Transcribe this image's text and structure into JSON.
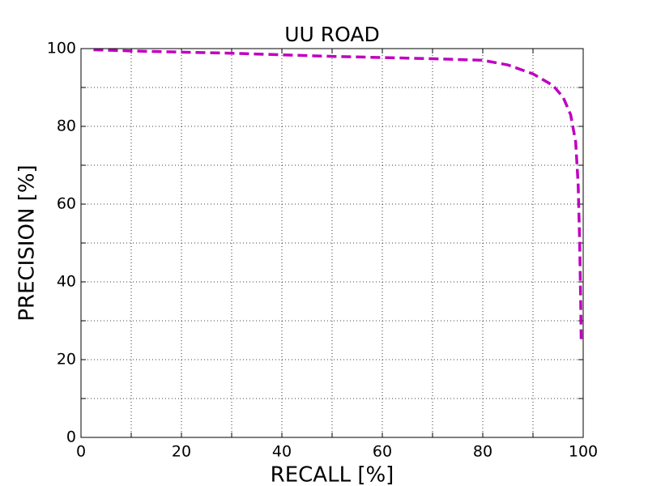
{
  "chart_data": {
    "type": "line",
    "title": "UU ROAD",
    "x_label": "RECALL [%]",
    "y_label": "PRECISION [%]",
    "x": [
      2.5,
      10,
      20,
      30,
      40,
      50,
      60,
      70,
      80,
      85,
      90,
      94,
      96,
      97.5,
      98.5,
      99,
      99.3,
      99.5,
      99.6
    ],
    "series": [
      {
        "color": "#bf00bf",
        "values": [
          99.7,
          99.4,
          99.1,
          98.8,
          98.4,
          98.0,
          97.7,
          97.4,
          97.0,
          95.8,
          93.5,
          90.5,
          87.5,
          83,
          76,
          65,
          50,
          35,
          25
        ]
      }
    ],
    "xlim": [
      0,
      100
    ],
    "ylim": [
      0,
      100
    ],
    "xticks": [
      0,
      20,
      40,
      60,
      80,
      100
    ],
    "yticks": [
      0,
      20,
      40,
      60,
      80,
      100
    ],
    "xminor": [
      10,
      30,
      50,
      70,
      90
    ],
    "yminor": [
      10,
      30,
      50,
      70,
      90
    ],
    "grid": true,
    "dashed": true
  }
}
